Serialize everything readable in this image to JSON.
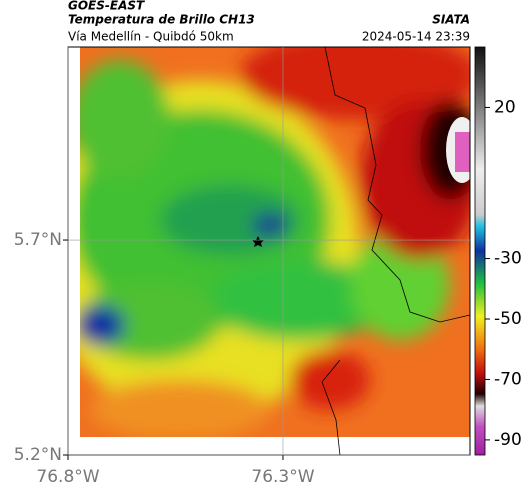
{
  "header": {
    "title": "GOES-EAST",
    "subtitle": "Temperatura de Brillo CH13",
    "source": "SIATA",
    "region": "Vía Medellín - Quibdó 50km",
    "timestamp": "2024-05-14 23:39"
  },
  "map": {
    "xlim": [
      -76.8,
      -75.865
    ],
    "ylim": [
      5.2,
      6.149
    ],
    "xticks": [
      {
        "value": -76.8,
        "label": "76.8°W"
      },
      {
        "value": -76.3,
        "label": "76.3°W"
      }
    ],
    "yticks": [
      {
        "value": 5.2,
        "label": "5.2°N"
      },
      {
        "value": 5.7,
        "label": "5.7°N"
      }
    ]
  },
  "colorbar": {
    "lim": [
      -95,
      40
    ],
    "ticks": [
      20,
      -30,
      -50,
      -70,
      -90
    ]
  }
}
